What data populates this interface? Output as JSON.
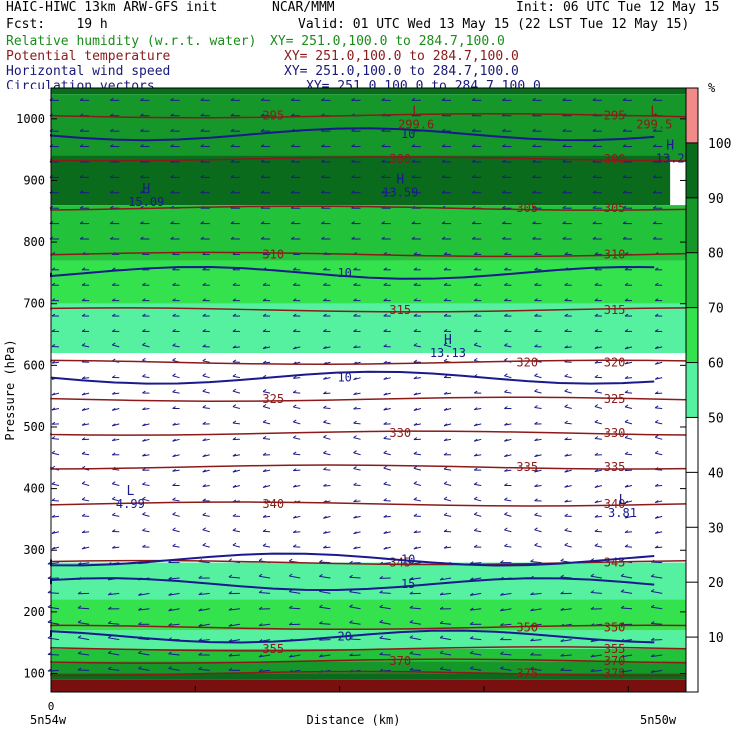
{
  "header": {
    "model": "HAIC-HIWC 13km ARW-GFS init",
    "agency": "NCAR/MMM",
    "init": "Init: 06 UTC Tue 12 May 15",
    "fcst": "Fcst:    19 h",
    "valid": "Valid: 01 UTC Wed 13 May 15 (22 LST Tue 12 May 15)"
  },
  "fields": [
    {
      "name": "Relative humidity (w.r.t. water)",
      "xy": "XY= 251.0,100.0 to 284.7,100.0",
      "color": "#1a8c1a"
    },
    {
      "name": "Potential temperature",
      "xy": "XY= 251.0,100.0 to 284.7,100.0",
      "color": "#8b1a1a"
    },
    {
      "name": "Horizontal wind speed",
      "xy": "XY= 251.0,100.0 to 284.7,100.0",
      "color": "#1a1a7a"
    },
    {
      "name": "Circulation vectors",
      "xy": "XY= 251.0,100.0 to 284.7,100.0",
      "color": "#1a1a7a"
    }
  ],
  "chart_data": {
    "type": "heatmap",
    "ylabel": "Pressure (hPa)",
    "xlabel": "Distance (km)",
    "x_tick_label": "0",
    "x_endpoints": [
      "5n54w",
      "5n50w"
    ],
    "x_range": [
      0,
      4
    ],
    "y_range": [
      1050,
      70
    ],
    "y_ticks": [
      100,
      200,
      300,
      400,
      500,
      600,
      700,
      800,
      900,
      1000
    ],
    "colorbar": {
      "unit": "%",
      "ticks": [
        10,
        20,
        30,
        40,
        50,
        60,
        70,
        80,
        90,
        100
      ],
      "bands": [
        {
          "from": 50,
          "to": 60,
          "color": "#55f0a0"
        },
        {
          "from": 60,
          "to": 70,
          "color": "#33e24d"
        },
        {
          "from": 70,
          "to": 80,
          "color": "#22c33a"
        },
        {
          "from": 80,
          "to": 90,
          "color": "#15972a"
        },
        {
          "from": 90,
          "to": 100,
          "color": "#0b6b1c"
        },
        {
          "from": 100,
          "to": 110,
          "color": "#f28a8a"
        }
      ]
    },
    "rh_regions": [
      {
        "color": "#0b6b1c",
        "x": [
          0,
          4
        ],
        "p": [
          1050,
          1040
        ]
      },
      {
        "color": "#15972a",
        "x": [
          0,
          4
        ],
        "p": [
          1040,
          930
        ]
      },
      {
        "color": "#0b6b1c",
        "x": [
          0,
          3.9
        ],
        "p": [
          940,
          860
        ]
      },
      {
        "color": "#22c33a",
        "x": [
          0,
          4
        ],
        "p": [
          860,
          770
        ]
      },
      {
        "color": "#33e24d",
        "x": [
          0,
          4
        ],
        "p": [
          770,
          700
        ]
      },
      {
        "color": "#55f0a0",
        "x": [
          0,
          4
        ],
        "p": [
          700,
          620
        ]
      },
      {
        "color": "#55f0a0",
        "x": [
          0,
          4
        ],
        "p": [
          280,
          220
        ]
      },
      {
        "color": "#33e24d",
        "x": [
          0,
          4
        ],
        "p": [
          220,
          170
        ]
      },
      {
        "color": "#55f0a0",
        "x": [
          0,
          4
        ],
        "p": [
          170,
          140
        ]
      },
      {
        "color": "#22c33a",
        "x": [
          0,
          4
        ],
        "p": [
          140,
          120
        ]
      },
      {
        "color": "#15972a",
        "x": [
          0,
          4
        ],
        "p": [
          120,
          100
        ]
      },
      {
        "color": "#0b6b1c",
        "x": [
          0,
          4
        ],
        "p": [
          100,
          90
        ]
      },
      {
        "color": "#7a0f0f",
        "x": [
          0,
          4
        ],
        "p": [
          90,
          70
        ]
      }
    ],
    "theta_contours": [
      {
        "label": "295",
        "p": 1005
      },
      {
        "label": "300",
        "p": 935
      },
      {
        "label": "305",
        "p": 855
      },
      {
        "label": "310",
        "p": 780
      },
      {
        "label": "315",
        "p": 690
      },
      {
        "label": "320",
        "p": 605
      },
      {
        "label": "325",
        "p": 545
      },
      {
        "label": "330",
        "p": 490
      },
      {
        "label": "335",
        "p": 435
      },
      {
        "label": "340",
        "p": 375
      },
      {
        "label": "345",
        "p": 280
      },
      {
        "label": "350",
        "p": 175
      },
      {
        "label": "355",
        "p": 140
      },
      {
        "label": "370",
        "p": 120
      },
      {
        "label": "375",
        "p": 100
      }
    ],
    "wind_contours": [
      {
        "label": "10",
        "p": 580
      },
      {
        "label": "10",
        "p": 285
      },
      {
        "label": "10",
        "p": 750
      },
      {
        "label": "15",
        "p": 245
      },
      {
        "label": "20",
        "p": 160
      },
      {
        "label": "10",
        "p": 975
      }
    ],
    "extrema": [
      {
        "type": "L",
        "value": "4.99",
        "x": 0.5,
        "p": 390
      },
      {
        "type": "L",
        "value": "3.81",
        "x": 3.6,
        "p": 375
      },
      {
        "type": "H",
        "value": "13.13",
        "x": 2.5,
        "p": 635
      },
      {
        "type": "H",
        "value": "15.09",
        "x": 0.6,
        "p": 880
      },
      {
        "type": "H",
        "value": "13.59",
        "x": 2.2,
        "p": 895
      },
      {
        "type": "H",
        "value": "13.2",
        "x": 3.9,
        "p": 950
      },
      {
        "type": "L",
        "value": "299.6",
        "x": 2.3,
        "p": 1005
      },
      {
        "type": "L",
        "value": "299.5",
        "x": 3.8,
        "p": 1005
      }
    ],
    "colors": {
      "theta": "#8b1a1a",
      "wind": "#1a1a8c",
      "vector": "#1a1a8c"
    }
  }
}
